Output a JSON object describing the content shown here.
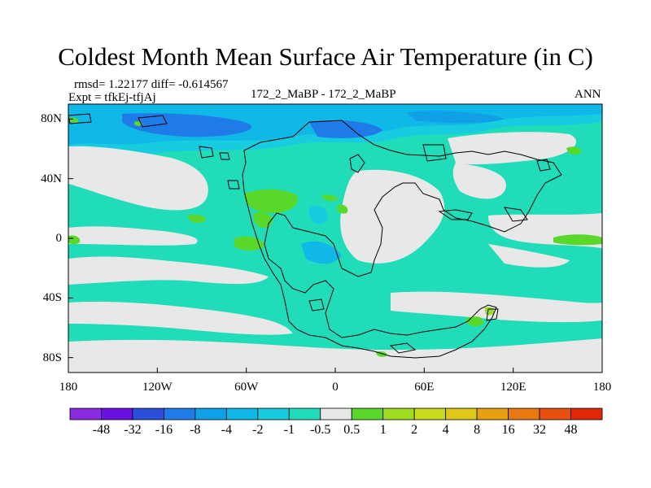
{
  "title": "Coldest Month Mean Surface Air Temperature (in C)",
  "stats_line": "rmsd= 1.22177 diff= -0.614567",
  "experiment_line": "Expt = tfkEj-tfjAj",
  "comparison_label": "172_2_MaBP - 172_2_MaBP",
  "season_label": "ANN",
  "map": {
    "lon_range": [
      -180,
      180
    ],
    "lat_range": [
      -90,
      90
    ],
    "lon_ticks": [
      {
        "value": -180,
        "label": "180"
      },
      {
        "value": -120,
        "label": "120W"
      },
      {
        "value": -60,
        "label": "60W"
      },
      {
        "value": 0,
        "label": "0"
      },
      {
        "value": 60,
        "label": "60E"
      },
      {
        "value": 120,
        "label": "120E"
      },
      {
        "value": 180,
        "label": "180"
      }
    ],
    "lat_ticks": [
      {
        "value": 80,
        "label": "80N"
      },
      {
        "value": 40,
        "label": "40N"
      },
      {
        "value": 0,
        "label": "0"
      },
      {
        "value": -40,
        "label": "40S"
      },
      {
        "value": -80,
        "label": "80S"
      }
    ]
  },
  "colorbar": {
    "colors": [
      "#8a2be2",
      "#6a10e0",
      "#2a4fd8",
      "#1e7be8",
      "#10a0e8",
      "#10b8e8",
      "#18cce0",
      "#20dcb8",
      "#e8e8e8",
      "#5ad82a",
      "#a0dc20",
      "#c8dc1c",
      "#e0c818",
      "#e8a010",
      "#e87810",
      "#e85010",
      "#e02808"
    ],
    "labels": [
      "-48",
      "-32",
      "-16",
      "-8",
      "-4",
      "-2",
      "-1",
      "-0.5",
      "0.5",
      "1",
      "2",
      "4",
      "8",
      "16",
      "32",
      "48"
    ]
  }
}
